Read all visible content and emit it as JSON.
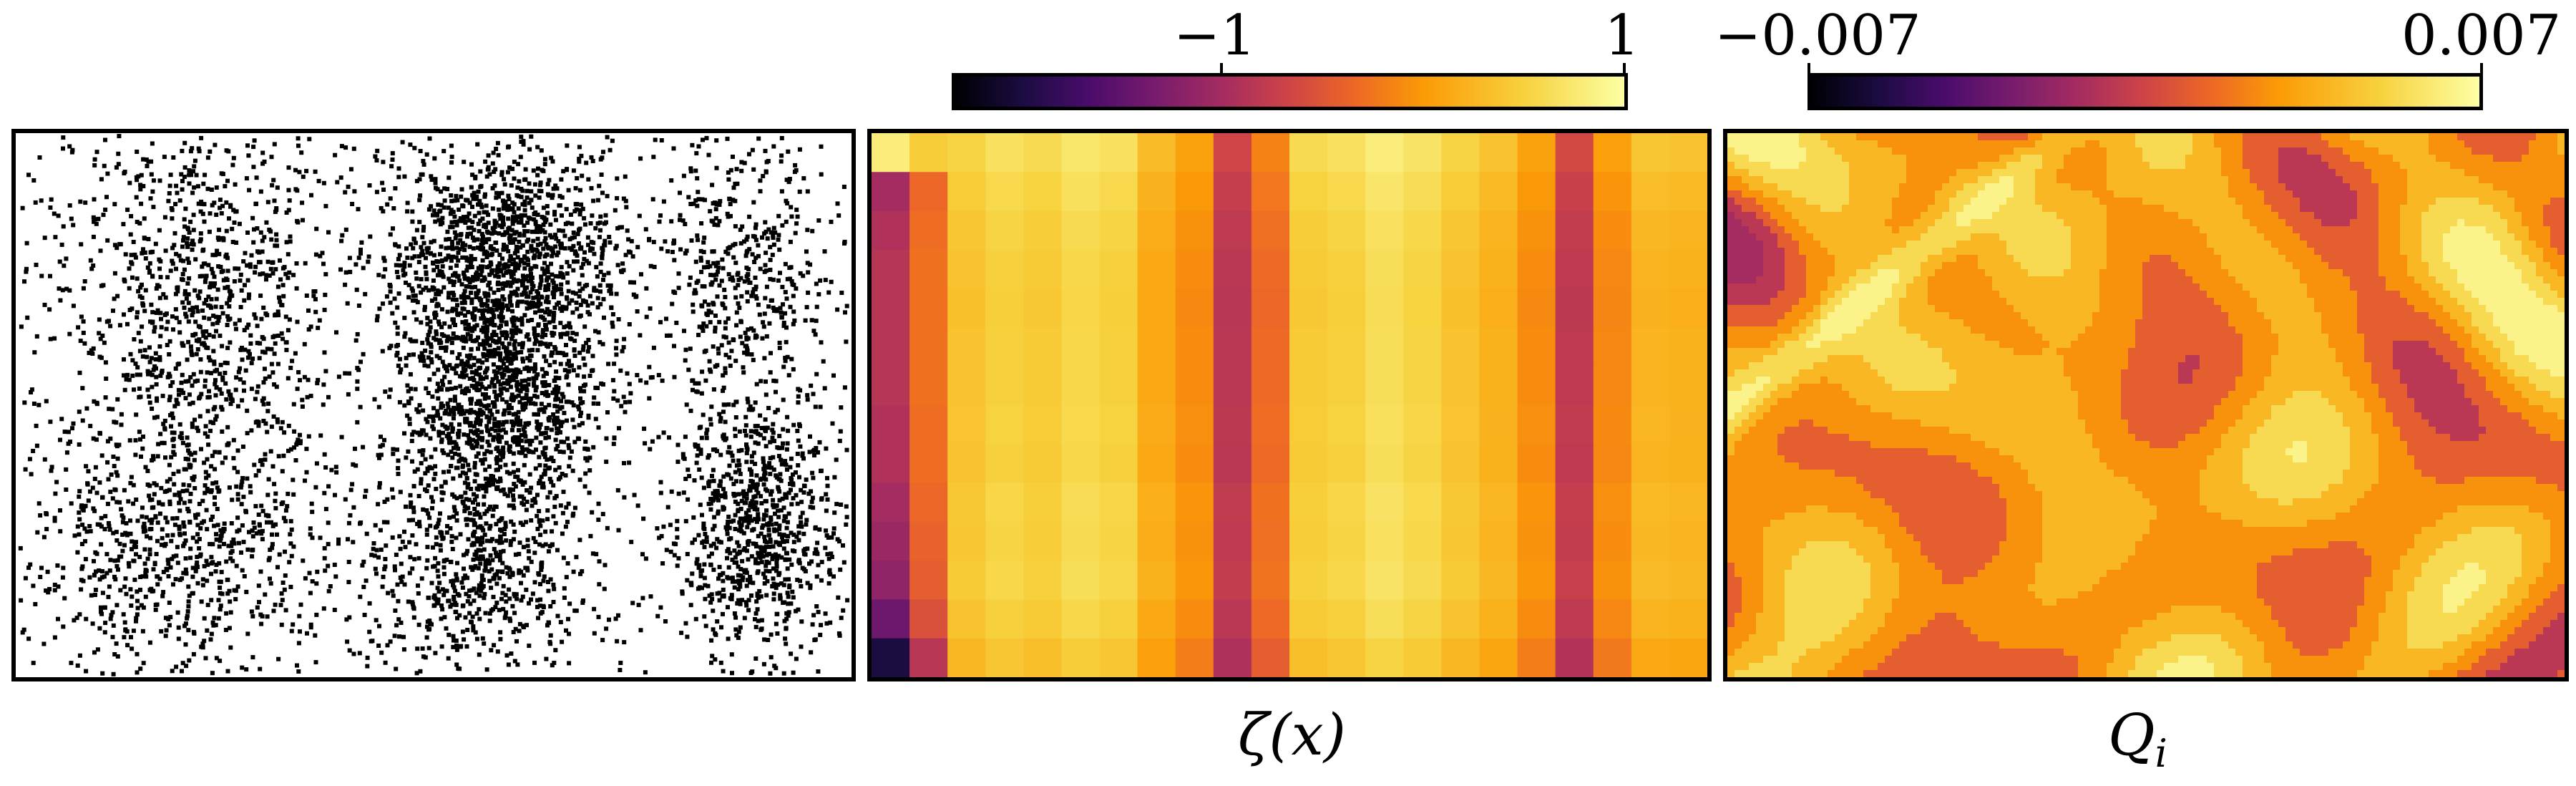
{
  "colormap": "inferno",
  "colors": {
    "frame": "#000000",
    "points": "#000000",
    "background": "#ffffff"
  },
  "panels": [
    {
      "id": "scatter",
      "xlabel": ""
    },
    {
      "id": "zeta",
      "xlabel": "ζ(x)",
      "colorbar": {
        "min_label": "−1",
        "max_label": "1"
      }
    },
    {
      "id": "Q",
      "xlabel_main": "Q",
      "xlabel_sub": "i",
      "colorbar": {
        "min_label": "−0.007",
        "max_label": "0.007"
      }
    }
  ],
  "chart_data": [
    {
      "type": "scatter",
      "title": "",
      "xlabel": "",
      "ylabel": "",
      "xlim": [
        0,
        1
      ],
      "ylim": [
        0,
        1
      ],
      "grid": false,
      "clusters": [
        {
          "cx": 0.22,
          "cy": 0.3,
          "sx": 0.08,
          "sy": 0.18,
          "n": 900
        },
        {
          "cx": 0.58,
          "cy": 0.25,
          "sx": 0.07,
          "sy": 0.12,
          "n": 1500
        },
        {
          "cx": 0.58,
          "cy": 0.52,
          "sx": 0.06,
          "sy": 0.1,
          "n": 900
        },
        {
          "cx": 0.2,
          "cy": 0.75,
          "sx": 0.09,
          "sy": 0.12,
          "n": 700
        },
        {
          "cx": 0.55,
          "cy": 0.8,
          "sx": 0.07,
          "sy": 0.1,
          "n": 600
        },
        {
          "cx": 0.87,
          "cy": 0.25,
          "sx": 0.05,
          "sy": 0.12,
          "n": 400
        },
        {
          "cx": 0.89,
          "cy": 0.72,
          "sx": 0.05,
          "sy": 0.12,
          "n": 800
        }
      ],
      "uniform_noise_points": 700
    },
    {
      "type": "heatmap",
      "title": "",
      "xlabel": "ζ(x)",
      "colormap": "inferno",
      "vmin": -1,
      "vmax": 1,
      "column_values": [
        0.78,
        0.58,
        0.62,
        0.7,
        0.66,
        0.74,
        0.7,
        0.48,
        0.34,
        -0.1,
        0.2,
        0.66,
        0.7,
        0.78,
        0.72,
        0.62,
        0.52,
        0.34,
        -0.08,
        0.32,
        0.54,
        0.52
      ],
      "row_offsets": [
        0.1,
        0.05,
        0.02,
        0.0,
        -0.01,
        0.0,
        0.0,
        0.01,
        0.0,
        0.03,
        0.02,
        0.04,
        0.0,
        -0.06
      ],
      "left_strip_values": [
        0.88,
        -0.2,
        -0.15,
        -0.12,
        -0.12,
        -0.12,
        -0.12,
        -0.15,
        -0.15,
        -0.2,
        -0.25,
        -0.3,
        -0.45,
        -0.8
      ]
    },
    {
      "type": "heatmap",
      "title": "",
      "xlabel": "Q_i",
      "colormap": "inferno",
      "vmin": -0.007,
      "vmax": 0.007,
      "levels": [
        0.45,
        0.57,
        0.68,
        0.78,
        0.88,
        0.96
      ]
    }
  ]
}
